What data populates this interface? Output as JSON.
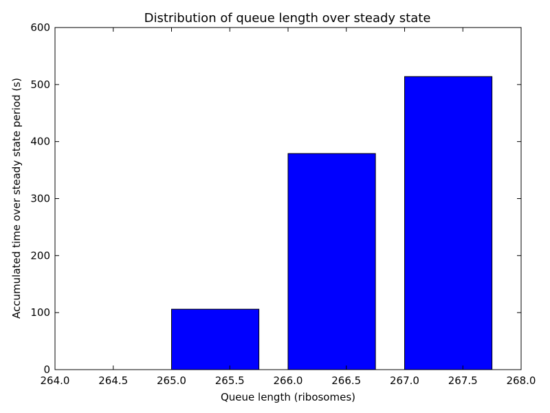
{
  "chart_data": {
    "type": "bar",
    "title": "Distribution of queue length over steady state",
    "xlabel": "Queue length (ribosomes)",
    "ylabel": "Accumulated time over steady state period (s)",
    "xlim": [
      264.0,
      268.0
    ],
    "ylim": [
      0,
      600
    ],
    "xticks": [
      264.0,
      264.5,
      265.0,
      265.5,
      266.0,
      266.5,
      267.0,
      267.5,
      268.0
    ],
    "xtick_labels": [
      "264.0",
      "264.5",
      "265.0",
      "265.5",
      "266.0",
      "266.5",
      "267.0",
      "267.5",
      "268.0"
    ],
    "yticks": [
      0,
      100,
      200,
      300,
      400,
      500,
      600
    ],
    "ytick_labels": [
      "0",
      "100",
      "200",
      "300",
      "400",
      "500",
      "600"
    ],
    "bar_width": 0.75,
    "bars": [
      {
        "x": 264,
        "value": 0
      },
      {
        "x": 265,
        "value": 106
      },
      {
        "x": 266,
        "value": 379
      },
      {
        "x": 267,
        "value": 514
      }
    ],
    "grid": false,
    "colors": {
      "bar_fill": "#0000ff",
      "bar_edge": "#000000",
      "axes": "#000000"
    }
  }
}
